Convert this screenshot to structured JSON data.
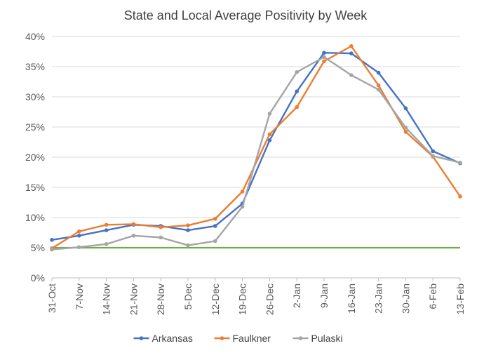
{
  "chart_data": {
    "type": "line",
    "title": "State and Local Average Positivity by Week",
    "xlabel": "",
    "ylabel": "",
    "categories": [
      "31-Oct",
      "7-Nov",
      "14-Nov",
      "21-Nov",
      "28-Nov",
      "5-Dec",
      "12-Dec",
      "19-Dec",
      "26-Dec",
      "2-Jan",
      "9-Jan",
      "16-Jan",
      "23-Jan",
      "30-Jan",
      "6-Feb",
      "13-Feb"
    ],
    "ylim": [
      0,
      0.4
    ],
    "yticks": [
      {
        "value": 0,
        "label": "0%"
      },
      {
        "value": 0.05,
        "label": "5%"
      },
      {
        "value": 0.1,
        "label": "10%"
      },
      {
        "value": 0.15,
        "label": "15%"
      },
      {
        "value": 0.2,
        "label": "20%"
      },
      {
        "value": 0.25,
        "label": "25%"
      },
      {
        "value": 0.3,
        "label": "30%"
      },
      {
        "value": 0.35,
        "label": "35%"
      },
      {
        "value": 0.4,
        "label": "40%"
      }
    ],
    "grid": true,
    "legend_position": "bottom",
    "reference_line": {
      "value": 0.05,
      "color": "#70ad47"
    },
    "series": [
      {
        "name": "Arkansas",
        "color": "#4472c4",
        "values": [
          0.063,
          0.07,
          0.079,
          0.088,
          0.086,
          0.079,
          0.086,
          0.123,
          0.228,
          0.309,
          0.373,
          0.372,
          0.34,
          0.281,
          0.21,
          0.19
        ]
      },
      {
        "name": "Faulkner",
        "color": "#ed7d31",
        "values": [
          0.049,
          0.077,
          0.088,
          0.089,
          0.084,
          0.087,
          0.098,
          0.143,
          0.238,
          0.283,
          0.359,
          0.384,
          0.319,
          0.242,
          0.201,
          0.135
        ]
      },
      {
        "name": "Pulaski",
        "color": "#a5a5a5",
        "values": [
          0.047,
          0.051,
          0.056,
          0.07,
          0.067,
          0.054,
          0.061,
          0.118,
          0.272,
          0.341,
          0.366,
          0.336,
          0.312,
          0.249,
          0.202,
          0.191
        ]
      }
    ]
  }
}
